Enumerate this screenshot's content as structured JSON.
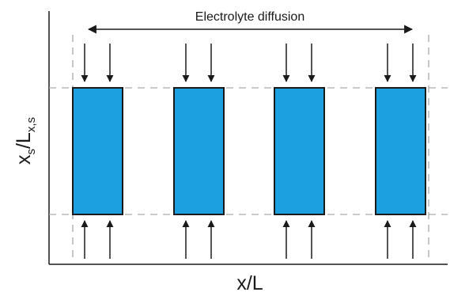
{
  "diagram": {
    "top_label": "Electrolyte diffusion",
    "x_axis_label": "x/L",
    "y_axis_label": {
      "base": "x",
      "base_subscript": "s",
      "over": "/L",
      "over_subscript": "x,s"
    },
    "particle_count": 4,
    "colors": {
      "particle_fill": "#1ca0e0",
      "outline": "#1a1a1a",
      "dashed_guides": "#aaaaaa"
    }
  }
}
